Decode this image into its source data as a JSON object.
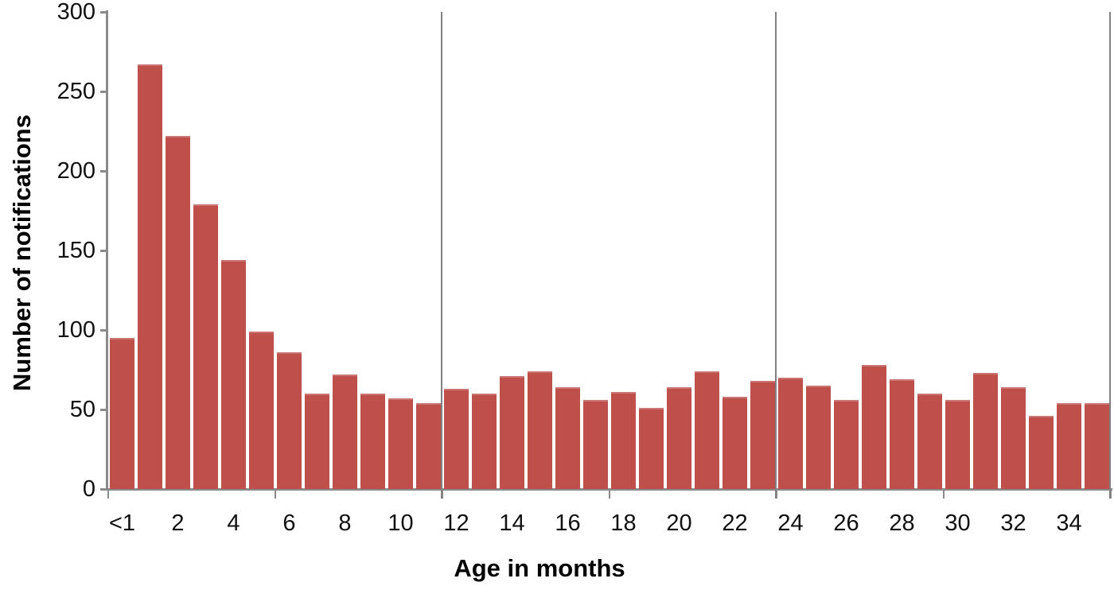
{
  "chart_data": {
    "type": "bar",
    "title": "",
    "xlabel": "Age in months",
    "ylabel": "Number of notifications",
    "categories": [
      "<1",
      "1",
      "2",
      "3",
      "4",
      "5",
      "6",
      "7",
      "8",
      "9",
      "10",
      "11",
      "12",
      "13",
      "14",
      "15",
      "16",
      "17",
      "18",
      "19",
      "20",
      "21",
      "22",
      "23",
      "24",
      "25",
      "26",
      "27",
      "28",
      "29",
      "30",
      "31",
      "32",
      "33",
      "34",
      "35"
    ],
    "values": [
      95,
      267,
      222,
      179,
      144,
      99,
      86,
      60,
      72,
      60,
      57,
      54,
      63,
      60,
      71,
      74,
      64,
      56,
      61,
      51,
      64,
      74,
      58,
      68,
      70,
      65,
      56,
      78,
      69,
      60,
      56,
      73,
      64,
      46,
      54,
      54
    ],
    "x_axis_labels_shown": [
      "<1",
      "2",
      "4",
      "6",
      "8",
      "10",
      "12",
      "14",
      "16",
      "18",
      "20",
      "22",
      "24",
      "26",
      "28",
      "30",
      "32",
      "34"
    ],
    "x_axis_label_months": [
      0,
      2,
      4,
      6,
      8,
      10,
      12,
      14,
      16,
      18,
      20,
      22,
      24,
      26,
      28,
      30,
      32,
      34
    ],
    "x_axis_tick_boundaries_months": [
      0,
      6,
      12,
      18,
      24,
      30,
      36
    ],
    "y_ticks": [
      0,
      50,
      100,
      150,
      200,
      250,
      300
    ],
    "ylim": [
      0,
      300
    ],
    "reference_lines_at_month_boundaries": [
      12,
      24,
      36
    ],
    "grid": false,
    "legend_position": "none",
    "colors": {
      "bar": "#BE4F4B",
      "axis": "#8a8a8a",
      "reference_line": "#808080",
      "text": "#111111"
    }
  }
}
